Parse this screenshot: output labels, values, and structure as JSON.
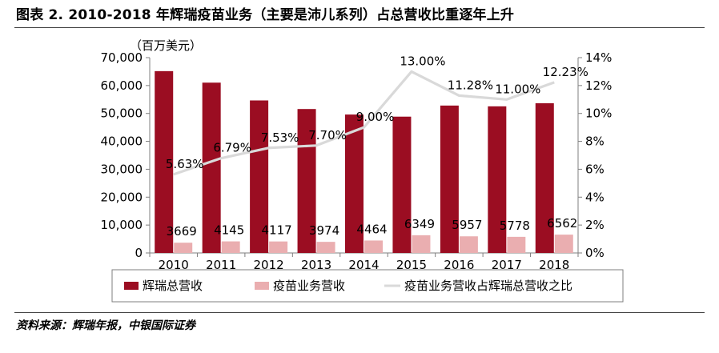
{
  "header": {
    "title": "图表 2. 2010-2018 年辉瑞疫苗业务（主要是沛儿系列）占总营收比重逐年上升"
  },
  "footer": {
    "source": "资料来源：辉瑞年报，中银国际证券"
  },
  "chart_data": {
    "type": "bar",
    "categories": [
      "2010",
      "2011",
      "2012",
      "2013",
      "2014",
      "2015",
      "2016",
      "2017",
      "2018"
    ],
    "unit_label": "（百万美元）",
    "left_axis": {
      "range": [
        0,
        70000
      ],
      "ticks": [
        0,
        10000,
        20000,
        30000,
        40000,
        50000,
        60000,
        70000
      ],
      "tick_labels": [
        "0",
        "10,000",
        "20,000",
        "30,000",
        "40,000",
        "50,000",
        "60,000",
        "70,000"
      ]
    },
    "right_axis": {
      "range": [
        0,
        14
      ],
      "ticks": [
        0,
        2,
        4,
        6,
        8,
        10,
        12,
        14
      ],
      "tick_labels": [
        "0%",
        "2%",
        "4%",
        "6%",
        "8%",
        "10%",
        "12%",
        "14%"
      ]
    },
    "series": [
      {
        "name": "辉瑞总营收",
        "type": "bar",
        "axis": "left",
        "color": "#9b0d22",
        "values": [
          65165,
          61035,
          54657,
          51584,
          49605,
          48851,
          52824,
          52546,
          53647
        ]
      },
      {
        "name": "疫苗业务营收",
        "type": "bar",
        "axis": "left",
        "color": "#eaaeb0",
        "values": [
          3669,
          4145,
          4117,
          3974,
          4464,
          6349,
          5957,
          5778,
          6562
        ],
        "labels": [
          "3669",
          "4145",
          "4117",
          "3974",
          "4464",
          "6349",
          "5957",
          "5778",
          "6562"
        ]
      },
      {
        "name": "疫苗业务营收占辉瑞总营收之比",
        "type": "line",
        "axis": "right",
        "color": "#d9d9d9",
        "values": [
          5.63,
          6.79,
          7.53,
          7.7,
          9.0,
          13.0,
          11.28,
          11.0,
          12.23
        ],
        "labels": [
          "5.63%",
          "6.79%",
          "7.53%",
          "7.70%",
          "9.00%",
          "13.00%",
          "11.28%",
          "11.00%",
          "12.23%"
        ]
      }
    ],
    "grid": false,
    "legend_position": "bottom"
  }
}
